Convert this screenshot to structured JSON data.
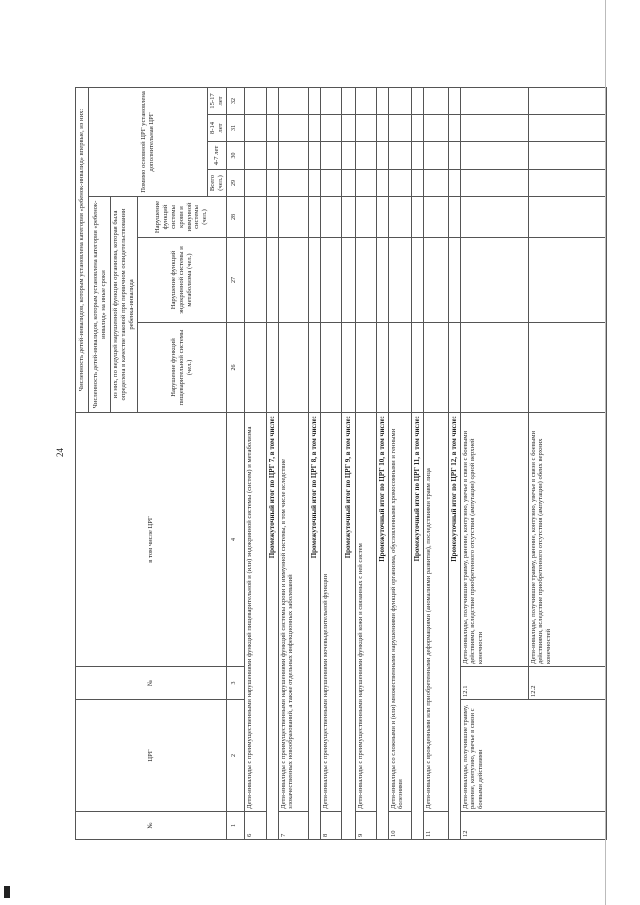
{
  "page_number": "24",
  "header": {
    "col1": "№",
    "col2": "ЦРГ",
    "col3": "№",
    "col4": "в том числе ЦРГ",
    "first_time": "Численность детей-инвалидов, которым установлена категория «ребенок-инвалид» впервые, из них:",
    "other_terms": "Численность детей-инвалидов, которым установлена категория «ребенок-инвалид» на иные сроки",
    "leading_function": "из них, по ведущей нарушенной функции организма, которая была определена в качестве таковой при первичном освидетельствовании ребенка-инвалида",
    "digestive": "Нарушение функций пищеварительной системы (чел.)",
    "endocrine": "Нарушение функций эндокринной системы и метаболизма (чел.)",
    "blood": "Нарушение функций системы крови и иммунной системы (чел.)",
    "additional": "Помимо основной ЦРГ установлена дополнительная ЦРГ",
    "total": "Всего (чел.)",
    "age_4_7": "4-7 лет",
    "age_8_14": "8-14 лет",
    "age_15_17": "15-17 лет"
  },
  "column_numbers": [
    "1",
    "2",
    "3",
    "4",
    "26",
    "27",
    "28",
    "29",
    "30",
    "31",
    "32"
  ],
  "rows": {
    "r6": {
      "num": "6",
      "text": "Дети-инвалиды с преимущественными нарушениями функций пищеварительной и (или) эндокринной системы (систем) и метаболизма"
    },
    "s7": "Промежуточный итог по ЦРГ 7, в том числе:",
    "r7": {
      "num": "7",
      "text": "Дети-инвалиды с преимущественными нарушениями функций системы крови и иммунной системы, в том числе вследствие злокачественных новообразований, а также отдельных инфекционных заболеваний"
    },
    "s8": "Промежуточный итог по ЦРГ 8, в том числе:",
    "r8": {
      "num": "8",
      "text": "Дети-инвалиды с преимущественными нарушениями мочевыделительной функции"
    },
    "s9": "Промежуточный итог по ЦРГ 9, в том числе:",
    "r9": {
      "num": "9",
      "text": "Дети-инвалиды с преимущественными нарушениями функций кожи и связанных с ней систем"
    },
    "s10": "Промежуточный итог по ЦРГ 10, в том числе:",
    "r10": {
      "num": "10",
      "text": "Дети-инвалиды со сложными и (или) множественными нарушениями функций организма, обусловленными хромосомными и генными болезнями"
    },
    "s11": "Промежуточный итог по ЦРГ 11, в том числе:",
    "r11": {
      "num": "11",
      "text": "Дети-инвалиды с врожденными или приобретенными деформациями (аномалиями развития), последствиями травм лица"
    },
    "s12": "Промежуточный итог по ЦРГ 12, в том числе:",
    "r12": {
      "num": "12",
      "crg": "Дети-инвалиды, получившие травму, ранение, контузию, увечье в связи с боевыми действиями",
      "sub1_num": "12.1",
      "sub1_text": "Дети-инвалиды, получившие травму, ранение, контузию, увечье в связи с боевыми действиями, вследствие приобретенного отсутствия (ампутации) одной верхней конечности",
      "sub2_num": "12.2",
      "sub2_text": "Дети-инвалиды, получившие травму, ранение, контузию, увечье в связи с боевыми действиями, вследствие приобретенного отсутствия (ампутации) обеих верхних конечностей"
    }
  }
}
